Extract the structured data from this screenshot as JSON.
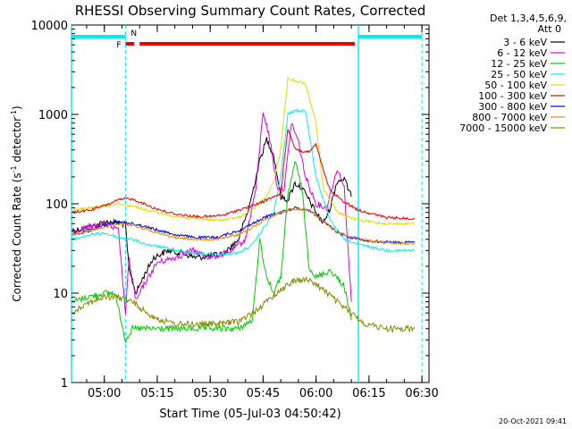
{
  "chart_data": {
    "type": "line",
    "title": "RHESSI Observing Summary Count Rates, Corrected",
    "xlabel": "Start Time (05-Jul-03 04:50:42)",
    "ylabel": "Corrected Count Rate (s⁻¹ detector⁻¹)",
    "ylabel_main": "Corrected Count Rate (s",
    "ylabel_exp1": "-1",
    "ylabel_mid": " detector",
    "ylabel_exp2": "-1",
    "ylabel_close": ")",
    "yscale": "log",
    "xlim": [
      "04:50:42",
      "06:32:00"
    ],
    "ylim": [
      1,
      10000
    ],
    "x_ticks": [
      "05:00",
      "05:15",
      "05:30",
      "05:45",
      "06:00",
      "06:15",
      "06:30"
    ],
    "y_ticks": [
      "1",
      "10",
      "100",
      "1000",
      "10000"
    ],
    "legend_header": [
      "Det 1,3,4,5,6,9,",
      "Att 0"
    ],
    "legend_position": "right",
    "timestamp": "20-Oct-2021 09:41",
    "flag_labels": {
      "F": "F",
      "N": "N"
    },
    "flags": {
      "night": [
        [
          "04:50:42",
          "05:06:00"
        ],
        [
          "06:12:00",
          "06:30:00"
        ]
      ],
      "flare": [
        [
          "05:06:00",
          "05:08:30"
        ],
        [
          "05:10:00",
          "06:11:00"
        ]
      ],
      "night_boundaries": [
        "04:50:42",
        "05:06:00",
        "06:12:00",
        "06:30:00"
      ]
    },
    "series": [
      {
        "name": "3 - 6 keV",
        "color": "#000000",
        "points": [
          [
            "04:51",
            50
          ],
          [
            "04:56",
            55
          ],
          [
            "05:00",
            62
          ],
          [
            "05:04",
            62
          ],
          [
            "05:06",
            58
          ],
          [
            "05:07",
            18
          ],
          [
            "05:09",
            10
          ],
          [
            "05:11",
            15
          ],
          [
            "05:14",
            25
          ],
          [
            "05:18",
            30
          ],
          [
            "05:22",
            28
          ],
          [
            "05:26",
            25
          ],
          [
            "05:30",
            26
          ],
          [
            "05:34",
            28
          ],
          [
            "05:38",
            40
          ],
          [
            "05:41",
            90
          ],
          [
            "05:44",
            300
          ],
          [
            "05:46",
            530
          ],
          [
            "05:48",
            350
          ],
          [
            "05:50",
            120
          ],
          [
            "05:52",
            110
          ],
          [
            "05:54",
            170
          ],
          [
            "05:56",
            150
          ],
          [
            "05:58",
            110
          ],
          [
            "06:00",
            80
          ],
          [
            "06:02",
            60
          ],
          [
            "06:04",
            90
          ],
          [
            "06:06",
            180
          ],
          [
            "06:08",
            190
          ],
          [
            "06:10",
            120
          ]
        ]
      },
      {
        "name": "6 - 12 keV",
        "color": "#dd00dd",
        "points": [
          [
            "04:51",
            50
          ],
          [
            "05:00",
            60
          ],
          [
            "05:04",
            50
          ],
          [
            "05:06",
            6
          ],
          [
            "05:07",
            24
          ],
          [
            "05:09",
            8
          ],
          [
            "05:11",
            12
          ],
          [
            "05:15",
            22
          ],
          [
            "05:20",
            25
          ],
          [
            "05:25",
            30
          ],
          [
            "05:30",
            25
          ],
          [
            "05:35",
            28
          ],
          [
            "05:40",
            40
          ],
          [
            "05:43",
            150
          ],
          [
            "05:45",
            1100
          ],
          [
            "05:47",
            500
          ],
          [
            "05:49",
            150
          ],
          [
            "05:51",
            150
          ],
          [
            "05:53",
            800
          ],
          [
            "05:55",
            500
          ],
          [
            "05:57",
            200
          ],
          [
            "06:00",
            100
          ],
          [
            "06:03",
            90
          ],
          [
            "06:06",
            250
          ],
          [
            "06:08",
            150
          ],
          [
            "06:10",
            8
          ]
        ]
      },
      {
        "name": "12 - 25 keV",
        "color": "#00cc00",
        "points": [
          [
            "04:51",
            8
          ],
          [
            "04:55",
            9
          ],
          [
            "05:00",
            10
          ],
          [
            "05:03",
            10
          ],
          [
            "05:06",
            3
          ],
          [
            "05:08",
            4
          ],
          [
            "05:12",
            4
          ],
          [
            "05:20",
            4
          ],
          [
            "05:30",
            4
          ],
          [
            "05:38",
            4
          ],
          [
            "05:42",
            5
          ],
          [
            "05:44",
            40
          ],
          [
            "05:46",
            15
          ],
          [
            "05:48",
            10
          ],
          [
            "05:50",
            15
          ],
          [
            "05:52",
            120
          ],
          [
            "05:54",
            300
          ],
          [
            "05:56",
            150
          ],
          [
            "05:58",
            20
          ],
          [
            "06:00",
            15
          ],
          [
            "06:04",
            18
          ],
          [
            "06:08",
            12
          ],
          [
            "06:10",
            5
          ]
        ]
      },
      {
        "name": "25 - 50 keV",
        "color": "#00eeee",
        "points": [
          [
            "04:51",
            40
          ],
          [
            "04:56",
            45
          ],
          [
            "05:00",
            47
          ],
          [
            "05:04",
            42
          ],
          [
            "05:08",
            40
          ],
          [
            "05:12",
            35
          ],
          [
            "05:16",
            33
          ],
          [
            "05:20",
            30
          ],
          [
            "05:26",
            28
          ],
          [
            "05:32",
            27
          ],
          [
            "05:38",
            28
          ],
          [
            "05:42",
            35
          ],
          [
            "05:46",
            60
          ],
          [
            "05:48",
            80
          ],
          [
            "05:50",
            200
          ],
          [
            "05:52",
            1000
          ],
          [
            "05:54",
            1100
          ],
          [
            "05:57",
            1100
          ],
          [
            "06:00",
            200
          ],
          [
            "06:04",
            65
          ],
          [
            "06:08",
            40
          ],
          [
            "06:12",
            35
          ],
          [
            "06:20",
            30
          ],
          [
            "06:28",
            30
          ]
        ]
      },
      {
        "name": "50 - 100 keV",
        "color": "#dddd00",
        "points": [
          [
            "04:51",
            85
          ],
          [
            "04:56",
            90
          ],
          [
            "05:00",
            95
          ],
          [
            "05:04",
            100
          ],
          [
            "05:08",
            95
          ],
          [
            "05:12",
            85
          ],
          [
            "05:16",
            78
          ],
          [
            "05:20",
            72
          ],
          [
            "05:26",
            68
          ],
          [
            "05:32",
            65
          ],
          [
            "05:38",
            70
          ],
          [
            "05:42",
            85
          ],
          [
            "05:46",
            120
          ],
          [
            "05:48",
            180
          ],
          [
            "05:50",
            400
          ],
          [
            "05:52",
            2500
          ],
          [
            "05:54",
            2400
          ],
          [
            "05:57",
            2200
          ],
          [
            "06:00",
            800
          ],
          [
            "06:02",
            150
          ],
          [
            "06:06",
            80
          ],
          [
            "06:12",
            65
          ],
          [
            "06:20",
            60
          ],
          [
            "06:28",
            60
          ]
        ]
      },
      {
        "name": "100 - 300 keV",
        "color": "#ee0000",
        "points": [
          [
            "04:51",
            80
          ],
          [
            "04:56",
            85
          ],
          [
            "05:00",
            95
          ],
          [
            "05:04",
            110
          ],
          [
            "05:07",
            115
          ],
          [
            "05:10",
            105
          ],
          [
            "05:14",
            90
          ],
          [
            "05:18",
            80
          ],
          [
            "05:22",
            75
          ],
          [
            "05:26",
            72
          ],
          [
            "05:30",
            72
          ],
          [
            "05:34",
            75
          ],
          [
            "05:38",
            85
          ],
          [
            "05:42",
            95
          ],
          [
            "05:46",
            110
          ],
          [
            "05:50",
            130
          ],
          [
            "05:52",
            700
          ],
          [
            "05:54",
            420
          ],
          [
            "05:56",
            380
          ],
          [
            "05:58",
            380
          ],
          [
            "06:00",
            460
          ],
          [
            "06:02",
            240
          ],
          [
            "06:04",
            140
          ],
          [
            "06:08",
            105
          ],
          [
            "06:12",
            85
          ],
          [
            "06:20",
            70
          ],
          [
            "06:28",
            68
          ]
        ]
      },
      {
        "name": "300 - 800 keV",
        "color": "#0000dd",
        "points": [
          [
            "04:51",
            45
          ],
          [
            "04:56",
            50
          ],
          [
            "05:00",
            58
          ],
          [
            "05:04",
            62
          ],
          [
            "05:08",
            60
          ],
          [
            "05:12",
            55
          ],
          [
            "05:16",
            50
          ],
          [
            "05:20",
            45
          ],
          [
            "05:26",
            42
          ],
          [
            "05:32",
            42
          ],
          [
            "05:38",
            50
          ],
          [
            "05:42",
            60
          ],
          [
            "05:46",
            72
          ],
          [
            "05:50",
            80
          ],
          [
            "05:54",
            90
          ],
          [
            "05:58",
            85
          ],
          [
            "06:02",
            65
          ],
          [
            "06:06",
            48
          ],
          [
            "06:10",
            42
          ],
          [
            "06:16",
            38
          ],
          [
            "06:22",
            37
          ],
          [
            "06:28",
            37
          ]
        ]
      },
      {
        "name": "800 - 7000 keV",
        "color": "#ee8800",
        "points": [
          [
            "04:51",
            45
          ],
          [
            "04:56",
            50
          ],
          [
            "05:00",
            55
          ],
          [
            "05:04",
            60
          ],
          [
            "05:08",
            58
          ],
          [
            "05:12",
            52
          ],
          [
            "05:16",
            46
          ],
          [
            "05:20",
            42
          ],
          [
            "05:26",
            40
          ],
          [
            "05:32",
            40
          ],
          [
            "05:38",
            45
          ],
          [
            "05:42",
            55
          ],
          [
            "05:46",
            68
          ],
          [
            "05:50",
            80
          ],
          [
            "05:54",
            88
          ],
          [
            "05:58",
            85
          ],
          [
            "06:02",
            65
          ],
          [
            "06:06",
            48
          ],
          [
            "06:10",
            42
          ],
          [
            "06:16",
            38
          ],
          [
            "06:22",
            36
          ],
          [
            "06:28",
            36
          ]
        ]
      },
      {
        "name": "7000 - 15000 keV",
        "color": "#888800",
        "points": [
          [
            "04:51",
            6
          ],
          [
            "04:53",
            7
          ],
          [
            "04:56",
            8
          ],
          [
            "05:00",
            9
          ],
          [
            "05:04",
            9
          ],
          [
            "05:08",
            8
          ],
          [
            "05:12",
            6
          ],
          [
            "05:16",
            5
          ],
          [
            "05:20",
            4.5
          ],
          [
            "05:26",
            4.5
          ],
          [
            "05:32",
            4.5
          ],
          [
            "05:38",
            4.8
          ],
          [
            "05:42",
            6
          ],
          [
            "05:46",
            8
          ],
          [
            "05:50",
            11
          ],
          [
            "05:54",
            14
          ],
          [
            "05:58",
            14
          ],
          [
            "06:02",
            11
          ],
          [
            "06:06",
            8
          ],
          [
            "06:10",
            6
          ],
          [
            "06:14",
            4.5
          ],
          [
            "06:20",
            4
          ],
          [
            "06:28",
            4
          ]
        ]
      }
    ]
  }
}
